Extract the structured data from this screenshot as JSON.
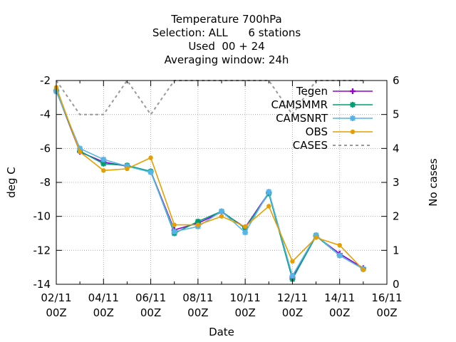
{
  "chart_data": {
    "type": "line",
    "title": [
      "Temperature 700hPa",
      "Selection: ALL      6 stations",
      "Used  00 + 24",
      "Averaging window: 24h"
    ],
    "xlabel": "Date",
    "ylabel": "deg C",
    "y2label": "No cases",
    "x_ticks": [
      {
        "l1": "02/11",
        "l2": "00Z"
      },
      {
        "l1": "04/11",
        "l2": "00Z"
      },
      {
        "l1": "06/11",
        "l2": "00Z"
      },
      {
        "l1": "08/11",
        "l2": "00Z"
      },
      {
        "l1": "10/11",
        "l2": "00Z"
      },
      {
        "l1": "12/11",
        "l2": "00Z"
      },
      {
        "l1": "14/11",
        "l2": "00Z"
      },
      {
        "l1": "16/11",
        "l2": "00Z"
      }
    ],
    "xlim": [
      "02/11 00Z",
      "16/11 00Z"
    ],
    "ylim": [
      -14,
      -2
    ],
    "y_ticks": [
      -2,
      -4,
      -6,
      -8,
      -10,
      -12,
      -14
    ],
    "y2lim": [
      0,
      6
    ],
    "y2_ticks": [
      6,
      5,
      4,
      3,
      2,
      1,
      0
    ],
    "grid": true,
    "legend_position": "top-right",
    "x": [
      "02/11 00Z",
      "03/11 00Z",
      "04/11 00Z",
      "05/11 00Z",
      "06/11 00Z",
      "07/11 00Z",
      "08/11 00Z",
      "09/11 00Z",
      "10/11 00Z",
      "11/11 00Z",
      "12/11 00Z",
      "13/11 00Z",
      "14/11 00Z",
      "15/11 00Z"
    ],
    "series": [
      {
        "name": "Tegen",
        "color": "#9400d3",
        "marker": "plus",
        "axis": "y",
        "values": [
          -2.6,
          -6.2,
          -6.8,
          -7.05,
          -7.35,
          -10.8,
          -10.4,
          -9.75,
          -10.65,
          -8.6,
          -13.6,
          -11.15,
          -12.2,
          -13.05
        ]
      },
      {
        "name": "CAMSMMR",
        "color": "#009e73",
        "marker": "star",
        "axis": "y",
        "values": [
          -2.6,
          -6.15,
          -6.9,
          -7.0,
          -7.35,
          -11.0,
          -10.3,
          -9.7,
          -10.7,
          -8.65,
          -13.7,
          -11.15,
          -12.3,
          -13.1
        ]
      },
      {
        "name": "CAMSNRT",
        "color": "#56b4e9",
        "marker": "star",
        "axis": "y",
        "values": [
          -2.65,
          -6.0,
          -6.65,
          -7.05,
          -7.4,
          -10.9,
          -10.6,
          -9.7,
          -10.95,
          -8.55,
          -13.5,
          -11.1,
          -12.3,
          -13.1
        ]
      },
      {
        "name": "OBS",
        "color": "#e69f00",
        "marker": "dot",
        "axis": "y",
        "values": [
          -2.4,
          -6.2,
          -7.3,
          -7.2,
          -6.55,
          -10.5,
          -10.5,
          -10.0,
          -10.6,
          -9.4,
          -12.65,
          -11.25,
          -11.7,
          -13.15
        ]
      },
      {
        "name": "CASES",
        "color": "#999999",
        "marker": "none",
        "axis": "y2",
        "dashed": true,
        "values": [
          6,
          5,
          5,
          6,
          5,
          6,
          6,
          6,
          6,
          6,
          5,
          6,
          6,
          6
        ]
      }
    ]
  }
}
